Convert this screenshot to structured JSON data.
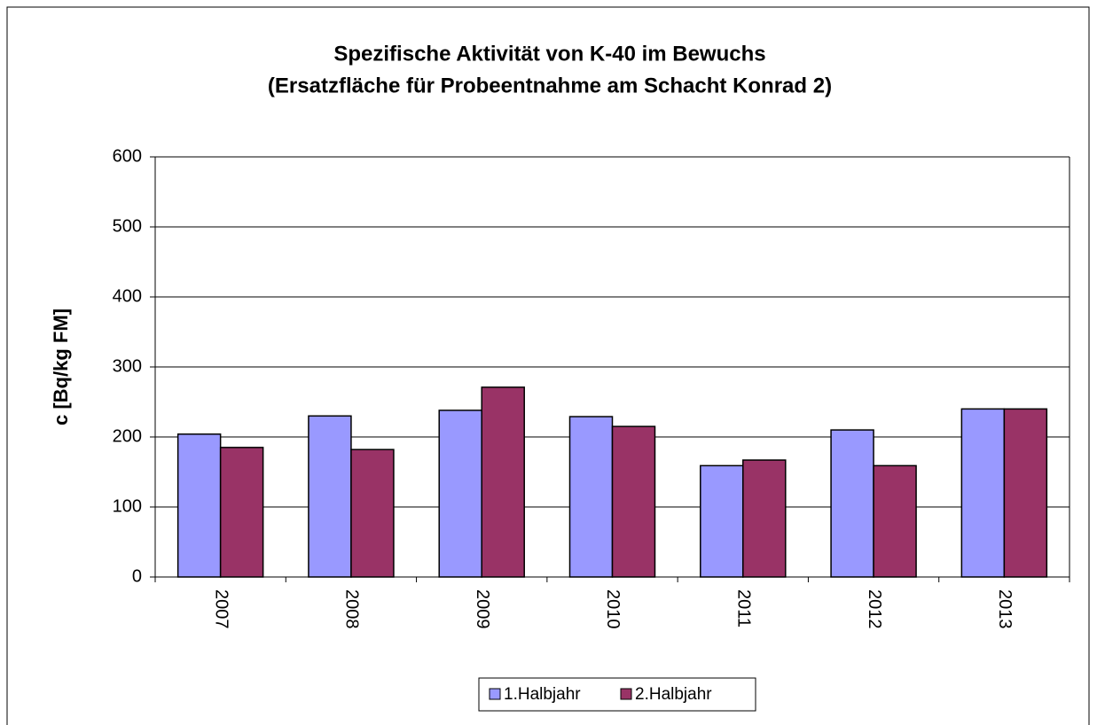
{
  "chart_data": {
    "type": "bar",
    "title": [
      "Spezifische Aktivität von K-40 im Bewuchs",
      "(Ersatzfläche für Probeentnahme am Schacht Konrad 2)"
    ],
    "y_label": "c [Bq/kg FM]",
    "categories": [
      "2007",
      "2008",
      "2009",
      "2010",
      "2011",
      "2012",
      "2013"
    ],
    "series": [
      {
        "name": "1.Halbjahr",
        "color": "#9999ff",
        "values": [
          204,
          230,
          238,
          229,
          159,
          210,
          240
        ]
      },
      {
        "name": "2.Halbjahr",
        "color": "#993366",
        "values": [
          185,
          182,
          271,
          215,
          167,
          159,
          240
        ]
      }
    ],
    "ylim": [
      0,
      600
    ],
    "yticks": [
      0,
      100,
      200,
      300,
      400,
      500,
      600
    ],
    "grid": true,
    "legend": "bottom"
  }
}
